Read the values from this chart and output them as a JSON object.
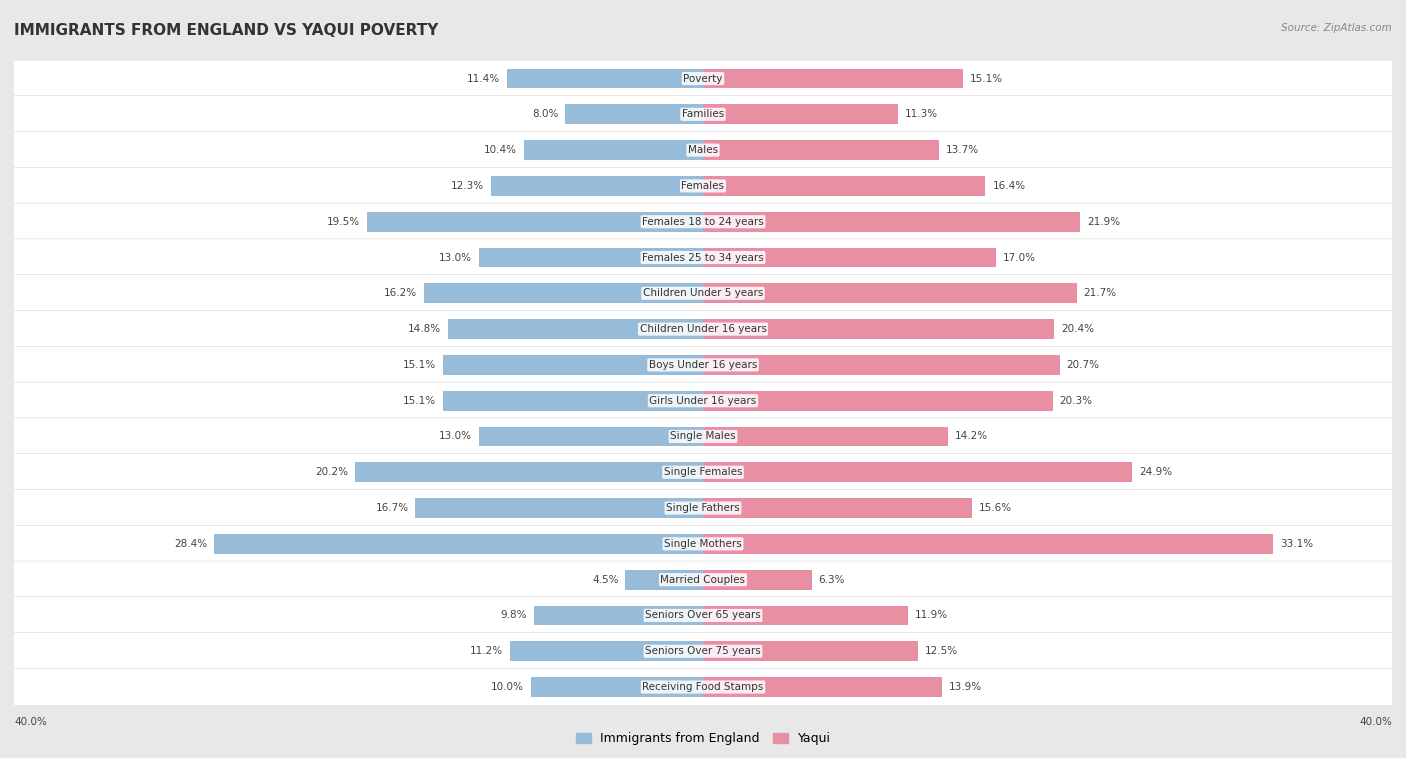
{
  "title": "IMMIGRANTS FROM ENGLAND VS YAQUI POVERTY",
  "source": "Source: ZipAtlas.com",
  "categories": [
    "Poverty",
    "Families",
    "Males",
    "Females",
    "Females 18 to 24 years",
    "Females 25 to 34 years",
    "Children Under 5 years",
    "Children Under 16 years",
    "Boys Under 16 years",
    "Girls Under 16 years",
    "Single Males",
    "Single Females",
    "Single Fathers",
    "Single Mothers",
    "Married Couples",
    "Seniors Over 65 years",
    "Seniors Over 75 years",
    "Receiving Food Stamps"
  ],
  "england_values": [
    11.4,
    8.0,
    10.4,
    12.3,
    19.5,
    13.0,
    16.2,
    14.8,
    15.1,
    15.1,
    13.0,
    20.2,
    16.7,
    28.4,
    4.5,
    9.8,
    11.2,
    10.0
  ],
  "yaqui_values": [
    15.1,
    11.3,
    13.7,
    16.4,
    21.9,
    17.0,
    21.7,
    20.4,
    20.7,
    20.3,
    14.2,
    24.9,
    15.6,
    33.1,
    6.3,
    11.9,
    12.5,
    13.9
  ],
  "england_color": "#97bcd9",
  "yaqui_color": "#e98fa4",
  "england_label": "Immigrants from England",
  "yaqui_label": "Yaqui",
  "xlim": 40.0,
  "background_color": "#e8e8e8",
  "row_light": "#f5f5f5",
  "row_dark": "#e0e0e0",
  "title_fontsize": 11,
  "label_fontsize": 7.5,
  "value_fontsize": 7.5,
  "legend_fontsize": 9,
  "source_fontsize": 7.5
}
